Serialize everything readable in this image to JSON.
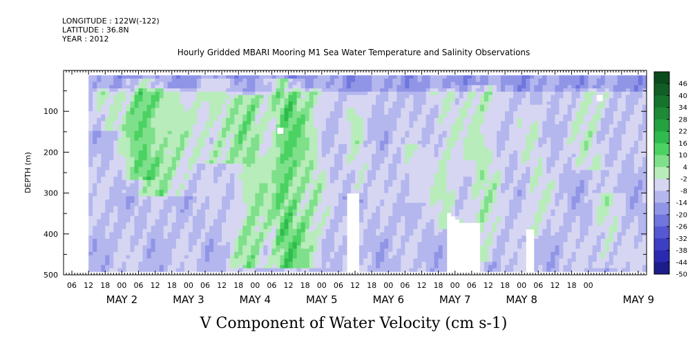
{
  "meta": {
    "longitude": "LONGITUDE : 122W(-122)",
    "latitude": "LATITUDE : 36.8N",
    "year": "YEAR : 2012"
  },
  "title": "Hourly Gridded MBARI Mooring M1 Sea Water Temperature and Salinity Observations",
  "xlabel": "V Component of Water Velocity (cm s-1)",
  "ylabel": "DEPTH (m)",
  "chart_data": {
    "type": "heatmap",
    "variable": "V Component of Water Velocity (cm s-1)",
    "x_axis": {
      "hour_ticks": [
        "06",
        "12",
        "18",
        "00",
        "06",
        "12",
        "18",
        "00",
        "06",
        "12",
        "18",
        "00",
        "06",
        "12",
        "18",
        "00",
        "06",
        "12",
        "18",
        "00",
        "06",
        "12",
        "18",
        "00",
        "06",
        "12",
        "18",
        "00",
        "06",
        "12",
        "18",
        "00"
      ],
      "day_labels": [
        "MAY  2",
        "MAY  3",
        "MAY  4",
        "MAY  5",
        "MAY  6",
        "MAY  7",
        "MAY  8",
        "MAY  9"
      ],
      "range_hours_since_may1_00": [
        3,
        213
      ]
    },
    "y_axis": {
      "label": "DEPTH (m)",
      "range": [
        0,
        500
      ],
      "inverted": true,
      "tick_labels": [
        "100",
        "200",
        "300",
        "400",
        "500"
      ],
      "tick_values": [
        100,
        200,
        300,
        400,
        500
      ]
    },
    "colorbar": {
      "labels": [
        "46",
        "40",
        "34",
        "28",
        "22",
        "16",
        "10",
        "4",
        "-2",
        "-8",
        "-14",
        "-20",
        "-26",
        "-32",
        "-38",
        "-44",
        "-50"
      ],
      "levels": [
        52,
        46,
        40,
        34,
        28,
        22,
        16,
        10,
        4,
        -2,
        -8,
        -14,
        -20,
        -26,
        -32,
        -38,
        -44,
        -50
      ],
      "colors": [
        "#0b4a1c",
        "#105e24",
        "#16732c",
        "#1d8a36",
        "#24a240",
        "#2fbb4d",
        "#4bd262",
        "#7fe08b",
        "#b8ecbb",
        "#d6d6f2",
        "#b4b6ee",
        "#9095e6",
        "#7076de",
        "#5558d2",
        "#3c3ec4",
        "#2a2ab0",
        "#1c1c8a"
      ]
    },
    "data_extent": {
      "x_start_hours": 12,
      "x_end_hours": 213,
      "depth_top": 12,
      "depth_bottom": 488
    },
    "value_range": [
      -50,
      46
    ],
    "notes": "Alternating bands of negative (blue, about -5 to -20) and positive (green, about 5 to 20) meridional velocity with depth and time; strongest positive flow near May 4 00-18h."
  }
}
